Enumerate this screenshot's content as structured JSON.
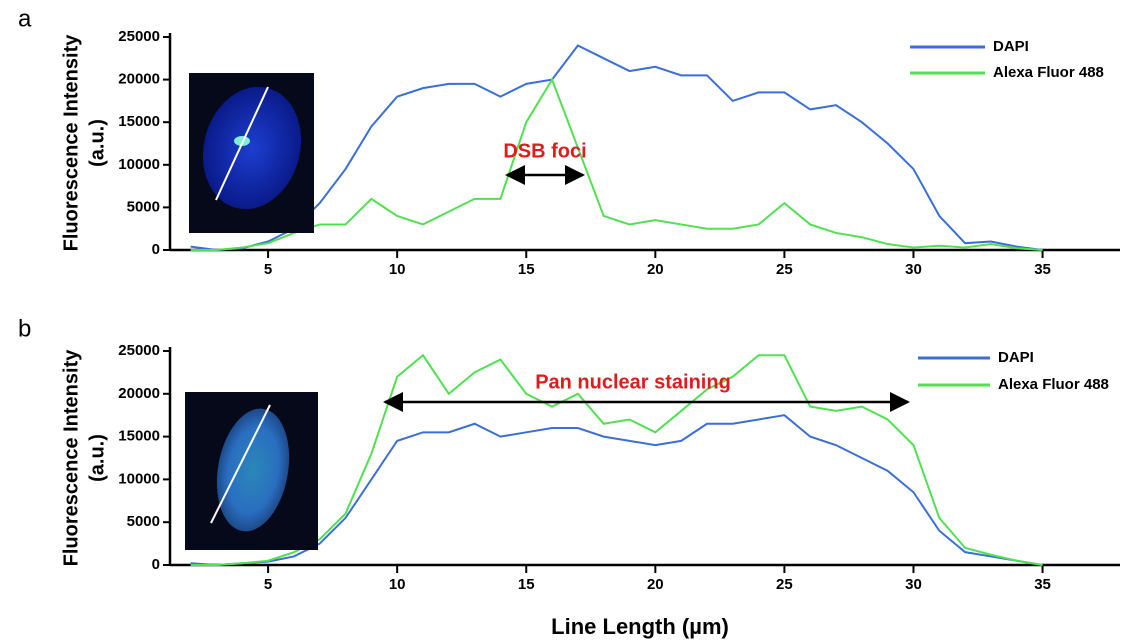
{
  "chart_data": [
    {
      "type": "line",
      "panel_label": "a",
      "y_label": [
        "Fluorescence Intensity",
        "(a.u.)"
      ],
      "annotation": "DSB foci",
      "x": [
        2,
        3,
        4,
        5,
        6,
        7,
        8,
        9,
        10,
        11,
        12,
        13,
        14,
        15,
        16,
        17,
        18,
        19,
        20,
        21,
        22,
        23,
        24,
        25,
        26,
        27,
        28,
        29,
        30,
        31,
        32,
        33,
        34,
        35
      ],
      "series": [
        {
          "name": "DAPI",
          "color": "#3a6fd8",
          "values": [
            400,
            0,
            200,
            1000,
            2500,
            5500,
            9500,
            14500,
            18000,
            19000,
            19500,
            19500,
            18000,
            19500,
            20000,
            24000,
            22500,
            21000,
            21500,
            20500,
            20500,
            17500,
            18500,
            18500,
            16500,
            17000,
            15000,
            12500,
            9500,
            4000,
            800,
            1000,
            400,
            0
          ]
        },
        {
          "name": "Alexa Fluor 488",
          "color": "#52e052",
          "values": [
            0,
            0,
            300,
            800,
            2000,
            3000,
            3000,
            6000,
            4000,
            3000,
            4500,
            6000,
            6000,
            15000,
            20000,
            12000,
            4000,
            3000,
            3500,
            3000,
            2500,
            2500,
            3000,
            5500,
            3000,
            2000,
            1500,
            700,
            300,
            500,
            300,
            700,
            200,
            0
          ]
        }
      ],
      "xlim": [
        1.2,
        38
      ],
      "xticks": [
        5,
        10,
        15,
        20,
        25,
        30,
        35
      ],
      "ylim": [
        0,
        25000
      ],
      "yticks": [
        0,
        5000,
        10000,
        15000,
        20000,
        25000
      ]
    },
    {
      "type": "line",
      "panel_label": "b",
      "y_label": [
        "Fluorescence Intensity",
        "(a.u.)"
      ],
      "x_label": "Line Length (µm)",
      "annotation": "Pan nuclear staining",
      "x": [
        2,
        3,
        4,
        5,
        6,
        7,
        8,
        9,
        10,
        11,
        12,
        13,
        14,
        15,
        16,
        17,
        18,
        19,
        20,
        21,
        22,
        23,
        24,
        25,
        26,
        27,
        28,
        29,
        30,
        31,
        32,
        33,
        34,
        35
      ],
      "series": [
        {
          "name": "DAPI",
          "color": "#3a6fd8",
          "values": [
            200,
            0,
            200,
            400,
            1000,
            2500,
            5500,
            10000,
            14500,
            15500,
            15500,
            16500,
            15000,
            15500,
            16000,
            16000,
            15000,
            14500,
            14000,
            14500,
            16500,
            16500,
            17000,
            17500,
            15000,
            14000,
            12500,
            11000,
            8500,
            4000,
            1500,
            1000,
            500,
            0
          ]
        },
        {
          "name": "Alexa Fluor 488",
          "color": "#52e052",
          "values": [
            0,
            0,
            200,
            500,
            1500,
            3000,
            6000,
            13000,
            22000,
            24500,
            20000,
            22500,
            24000,
            20000,
            18500,
            20000,
            16500,
            17000,
            15500,
            18000,
            20500,
            22000,
            24500,
            24500,
            18500,
            18000,
            18500,
            17000,
            14000,
            5500,
            2000,
            1200,
            500,
            0
          ]
        }
      ],
      "xlim": [
        1.2,
        38
      ],
      "xticks": [
        5,
        10,
        15,
        20,
        25,
        30,
        35
      ],
      "ylim": [
        0,
        25000
      ],
      "yticks": [
        0,
        5000,
        10000,
        15000,
        20000,
        25000
      ]
    }
  ]
}
